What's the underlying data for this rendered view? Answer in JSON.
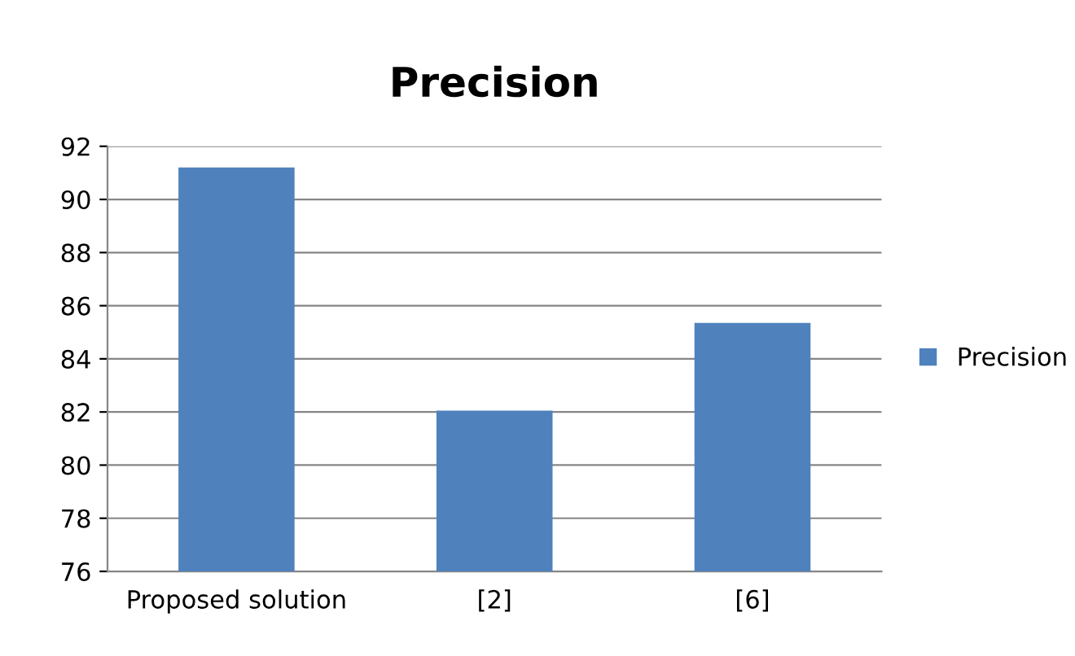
{
  "chart_data": {
    "type": "bar",
    "title": "Precision",
    "categories": [
      "Proposed solution",
      "[2]",
      "[6]"
    ],
    "series": [
      {
        "name": "Precision",
        "color": "#4f81bd",
        "values": [
          91.2,
          82.05,
          85.35
        ]
      }
    ],
    "ylim": [
      76,
      92
    ],
    "yticks": [
      76,
      78,
      80,
      82,
      84,
      86,
      88,
      90,
      92
    ],
    "grid": "y",
    "legend": "right"
  }
}
